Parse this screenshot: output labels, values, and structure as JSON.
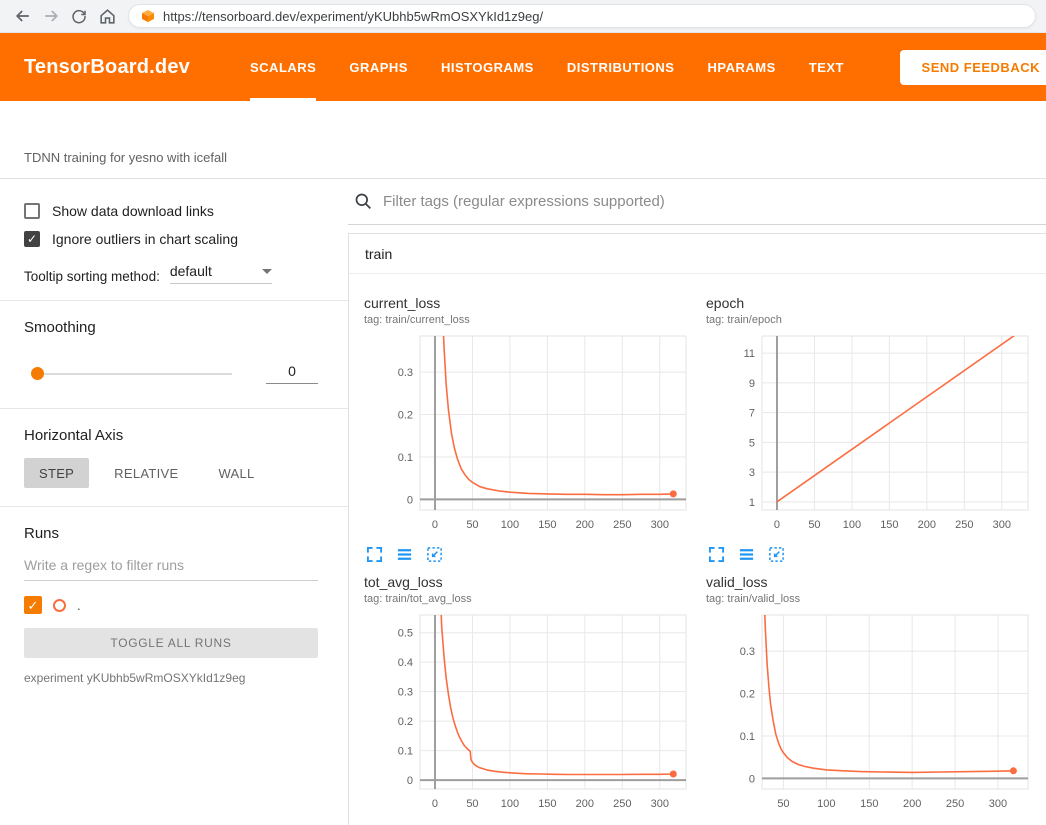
{
  "browser": {
    "url": "https://tensorboard.dev/experiment/yKUbhb5wRmOSXYkId1z9eg/"
  },
  "header": {
    "title": "TensorBoard.dev",
    "tabs": [
      {
        "label": "SCALARS",
        "active": true
      },
      {
        "label": "GRAPHS",
        "active": false
      },
      {
        "label": "HISTOGRAMS",
        "active": false
      },
      {
        "label": "DISTRIBUTIONS",
        "active": false
      },
      {
        "label": "HPARAMS",
        "active": false
      },
      {
        "label": "TEXT",
        "active": false
      }
    ],
    "feedback_label": "SEND FEEDBACK"
  },
  "experiment": {
    "name": "TDNN training for yesno with icefall"
  },
  "sidebar": {
    "show_download_label": "Show data download links",
    "ignore_outliers_label": "Ignore outliers in chart scaling",
    "tooltip_sorting_label": "Tooltip sorting method:",
    "tooltip_sorting_value": "default",
    "smoothing_label": "Smoothing",
    "smoothing_value": "0",
    "horizontal_axis_label": "Horizontal Axis",
    "axis_options": [
      "STEP",
      "RELATIVE",
      "WALL"
    ],
    "runs_label": "Runs",
    "runs_filter_placeholder": "Write a regex to filter runs",
    "run_name": ".",
    "toggle_all_label": "TOGGLE ALL RUNS",
    "experiment_caption": "experiment yKUbhb5wRmOSXYkId1z9eg"
  },
  "main": {
    "filter_placeholder": "Filter tags (regular expressions supported)",
    "section_title": "train"
  },
  "icons": {
    "check": "✓"
  },
  "colors": {
    "header_orange": "#ff6f00",
    "accent_orange": "#f57c00",
    "line_orange": "#fb6d41",
    "icon_blue": "#2196f3"
  },
  "chart_data": [
    {
      "type": "line",
      "title": "current_loss",
      "tag": "tag: train/current_loss",
      "xlabel": "step",
      "ylabel": "",
      "xlim": [
        -20,
        335
      ],
      "ylim": [
        -0.025,
        0.385
      ],
      "xticks": [
        0,
        50,
        100,
        150,
        200,
        250,
        300
      ],
      "yticks": [
        0,
        0.1,
        0.2,
        0.3
      ],
      "grid": true,
      "legend": "none",
      "endpoint_marker": true,
      "series": [
        {
          "name": ".",
          "color": "#fb6d41",
          "points": [
            [
              0,
              2.0
            ],
            [
              3,
              1.2
            ],
            [
              6,
              0.75
            ],
            [
              9,
              0.5
            ],
            [
              12,
              0.36
            ],
            [
              15,
              0.27
            ],
            [
              18,
              0.21
            ],
            [
              22,
              0.155
            ],
            [
              26,
              0.12
            ],
            [
              30,
              0.095
            ],
            [
              35,
              0.072
            ],
            [
              40,
              0.058
            ],
            [
              45,
              0.047
            ],
            [
              50,
              0.04
            ],
            [
              60,
              0.03
            ],
            [
              70,
              0.025
            ],
            [
              85,
              0.02
            ],
            [
              100,
              0.017
            ],
            [
              125,
              0.014
            ],
            [
              150,
              0.013
            ],
            [
              175,
              0.012
            ],
            [
              200,
              0.012
            ],
            [
              225,
              0.011
            ],
            [
              250,
              0.011
            ],
            [
              275,
              0.012
            ],
            [
              300,
              0.012
            ],
            [
              318,
              0.013
            ]
          ]
        }
      ]
    },
    {
      "type": "line",
      "title": "epoch",
      "tag": "tag: train/epoch",
      "xlabel": "step",
      "ylabel": "",
      "xlim": [
        -20,
        335
      ],
      "ylim": [
        0.45,
        12.15
      ],
      "xticks": [
        0,
        50,
        100,
        150,
        200,
        250,
        300
      ],
      "yticks": [
        1,
        3,
        5,
        7,
        9,
        11
      ],
      "grid": true,
      "legend": "none",
      "endpoint_marker": false,
      "series": [
        {
          "name": ".",
          "color": "#fb6d41",
          "points": [
            [
              0,
              1
            ],
            [
              320,
              12.3
            ]
          ]
        }
      ]
    },
    {
      "type": "line",
      "title": "tot_avg_loss",
      "tag": "tag: train/tot_avg_loss",
      "xlabel": "step",
      "ylabel": "",
      "xlim": [
        -20,
        335
      ],
      "ylim": [
        -0.03,
        0.56
      ],
      "xticks": [
        0,
        50,
        100,
        150,
        200,
        250,
        300
      ],
      "yticks": [
        0,
        0.1,
        0.2,
        0.3,
        0.4,
        0.5
      ],
      "grid": true,
      "legend": "none",
      "endpoint_marker": true,
      "series": [
        {
          "name": ".",
          "color": "#fb6d41",
          "points": [
            [
              0,
              1.5
            ],
            [
              3,
              1.0
            ],
            [
              6,
              0.7
            ],
            [
              9,
              0.52
            ],
            [
              12,
              0.42
            ],
            [
              15,
              0.345
            ],
            [
              18,
              0.29
            ],
            [
              21,
              0.245
            ],
            [
              24,
              0.21
            ],
            [
              27,
              0.185
            ],
            [
              30,
              0.162
            ],
            [
              33,
              0.145
            ],
            [
              36,
              0.13
            ],
            [
              39,
              0.118
            ],
            [
              42,
              0.109
            ],
            [
              45,
              0.102
            ],
            [
              47,
              0.098
            ],
            [
              48,
              0.07
            ],
            [
              50,
              0.06
            ],
            [
              53,
              0.052
            ],
            [
              56,
              0.047
            ],
            [
              60,
              0.042
            ],
            [
              65,
              0.038
            ],
            [
              70,
              0.034
            ],
            [
              80,
              0.03
            ],
            [
              90,
              0.027
            ],
            [
              100,
              0.025
            ],
            [
              120,
              0.022
            ],
            [
              140,
              0.021
            ],
            [
              160,
              0.02
            ],
            [
              180,
              0.019
            ],
            [
              200,
              0.019
            ],
            [
              225,
              0.019
            ],
            [
              250,
              0.019
            ],
            [
              275,
              0.02
            ],
            [
              300,
              0.02
            ],
            [
              318,
              0.021
            ]
          ]
        }
      ]
    },
    {
      "type": "line",
      "title": "valid_loss",
      "tag": "tag: train/valid_loss",
      "xlabel": "step",
      "ylabel": "",
      "xlim": [
        25,
        335
      ],
      "ylim": [
        -0.025,
        0.385
      ],
      "xticks": [
        50,
        100,
        150,
        200,
        250,
        300
      ],
      "yticks": [
        0,
        0.1,
        0.2,
        0.3
      ],
      "grid": true,
      "legend": "none",
      "endpoint_marker": true,
      "series": [
        {
          "name": ".",
          "color": "#fb6d41",
          "points": [
            [
              25,
              0.6
            ],
            [
              27,
              0.45
            ],
            [
              29,
              0.35
            ],
            [
              31,
              0.27
            ],
            [
              33,
              0.215
            ],
            [
              35,
              0.175
            ],
            [
              38,
              0.135
            ],
            [
              41,
              0.105
            ],
            [
              44,
              0.085
            ],
            [
              47,
              0.07
            ],
            [
              50,
              0.06
            ],
            [
              55,
              0.048
            ],
            [
              60,
              0.04
            ],
            [
              67,
              0.033
            ],
            [
              75,
              0.028
            ],
            [
              85,
              0.024
            ],
            [
              100,
              0.02
            ],
            [
              120,
              0.018
            ],
            [
              140,
              0.016
            ],
            [
              165,
              0.015
            ],
            [
              200,
              0.014
            ],
            [
              235,
              0.015
            ],
            [
              270,
              0.016
            ],
            [
              300,
              0.017
            ],
            [
              318,
              0.018
            ]
          ]
        }
      ]
    }
  ]
}
